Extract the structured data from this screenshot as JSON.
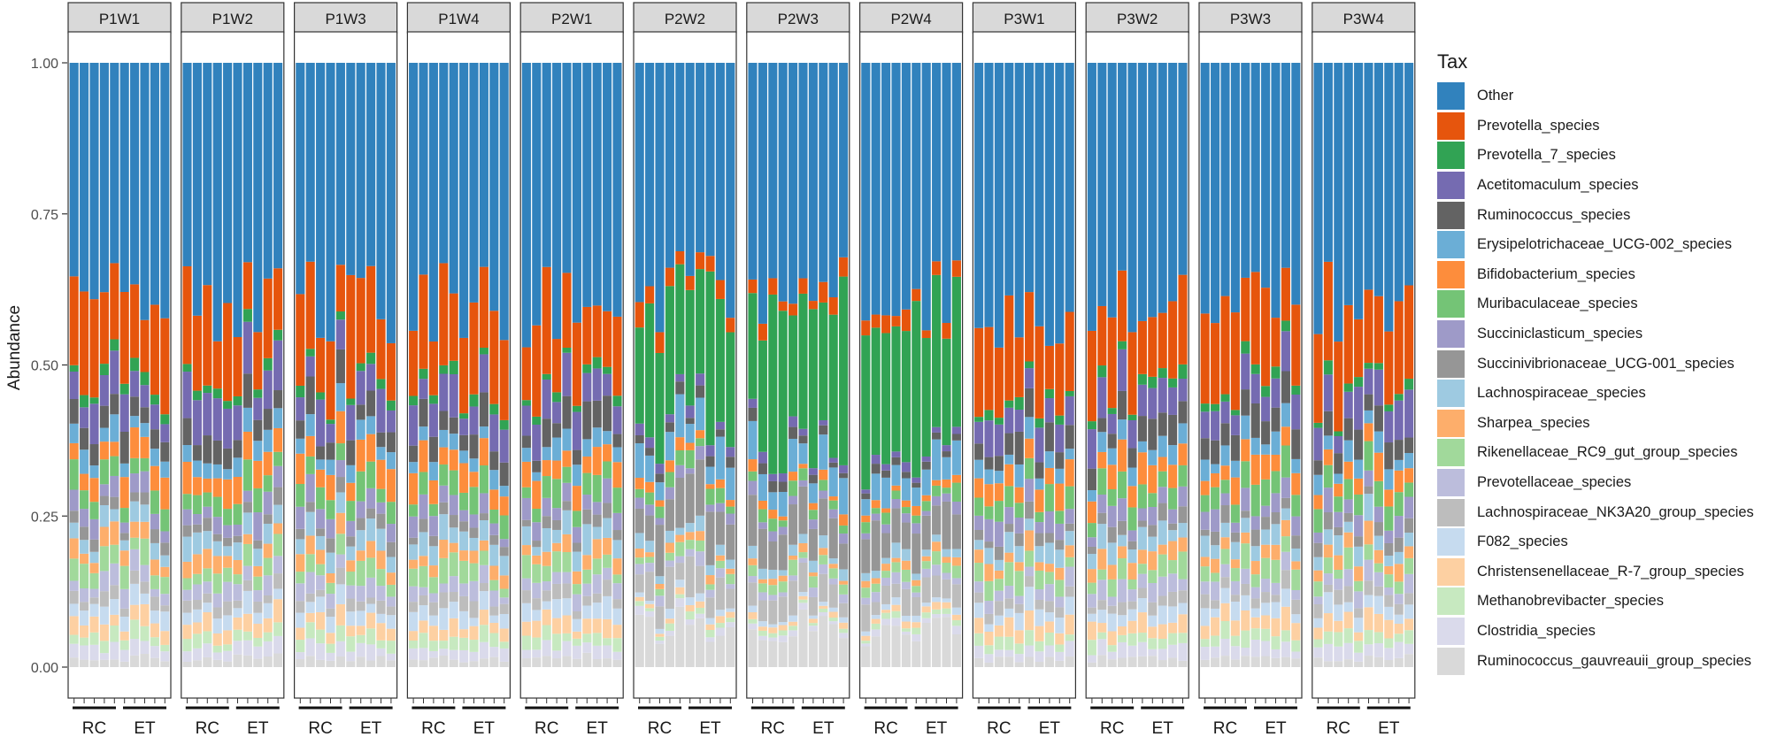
{
  "chart_data": {
    "type": "bar",
    "stacked": true,
    "ylabel": "Abundance",
    "ylim": [
      0,
      1
    ],
    "yticks": [
      "0.00",
      "0.25",
      "0.50",
      "0.75",
      "1.00"
    ],
    "ytick_values": [
      0,
      0.25,
      0.5,
      0.75,
      1
    ],
    "grid": true,
    "legend_title": "Tax",
    "legend_position": "right",
    "groups": [
      "RC",
      "ET"
    ],
    "bars_per_group": 5,
    "panels": [
      {
        "name": "P1W1",
        "profile": "prev"
      },
      {
        "name": "P1W2",
        "profile": "prev"
      },
      {
        "name": "P1W3",
        "profile": "prev"
      },
      {
        "name": "P1W4",
        "profile": "prev"
      },
      {
        "name": "P2W1",
        "profile": "prev"
      },
      {
        "name": "P2W2",
        "profile": "p7"
      },
      {
        "name": "P2W3",
        "profile": "p7"
      },
      {
        "name": "P2W4",
        "profile": "p7"
      },
      {
        "name": "P3W1",
        "profile": "prev"
      },
      {
        "name": "P3W2",
        "profile": "prev"
      },
      {
        "name": "P3W3",
        "profile": "prev"
      },
      {
        "name": "P3W4",
        "profile": "prev"
      }
    ],
    "series": [
      {
        "name": "Other",
        "color": "#3182bd"
      },
      {
        "name": "Prevotella_species",
        "color": "#e6550d"
      },
      {
        "name": "Prevotella_7_species",
        "color": "#31a354"
      },
      {
        "name": "Acetitomaculum_species",
        "color": "#756bb1"
      },
      {
        "name": "Ruminococcus_species",
        "color": "#636363"
      },
      {
        "name": "Erysipelotrichaceae_UCG-002_species",
        "color": "#6baed6"
      },
      {
        "name": "Bifidobacterium_species",
        "color": "#fd8d3c"
      },
      {
        "name": "Muribaculaceae_species",
        "color": "#74c476"
      },
      {
        "name": "Succiniclasticum_species",
        "color": "#9e9ac8"
      },
      {
        "name": "Succinivibrionaceae_UCG-001_species",
        "color": "#969696"
      },
      {
        "name": "Lachnospiraceae_species",
        "color": "#9ecae1"
      },
      {
        "name": "Sharpea_species",
        "color": "#fdae6b"
      },
      {
        "name": "Rikenellaceae_RC9_gut_group_species",
        "color": "#a1d99b"
      },
      {
        "name": "Prevotellaceae_species",
        "color": "#bcbddc"
      },
      {
        "name": "Lachnospiraceae_NK3A20_group_species",
        "color": "#bdbdbd"
      },
      {
        "name": "F082_species",
        "color": "#c6dbef"
      },
      {
        "name": "Christensenellaceae_R-7_group_species",
        "color": "#fdd0a2"
      },
      {
        "name": "Methanobrevibacter_species",
        "color": "#c7e9c0"
      },
      {
        "name": "Clostridia_species",
        "color": "#dadaeb"
      },
      {
        "name": "Ruminococcus_gauvreauii_group_species",
        "color": "#d9d9d9"
      }
    ],
    "profiles": {
      "prev": [
        0.4,
        0.13,
        0.015,
        0.055,
        0.04,
        0.03,
        0.04,
        0.035,
        0.03,
        0.02,
        0.03,
        0.025,
        0.03,
        0.025,
        0.02,
        0.025,
        0.025,
        0.02,
        0.02,
        0.015
      ],
      "p7": [
        0.38,
        0.03,
        0.25,
        0.015,
        0.015,
        0.05,
        0.015,
        0.02,
        0.015,
        0.07,
        0.02,
        0.012,
        0.018,
        0.015,
        0.045,
        0.01,
        0.01,
        0.01,
        0.01,
        0.075
      ]
    }
  }
}
